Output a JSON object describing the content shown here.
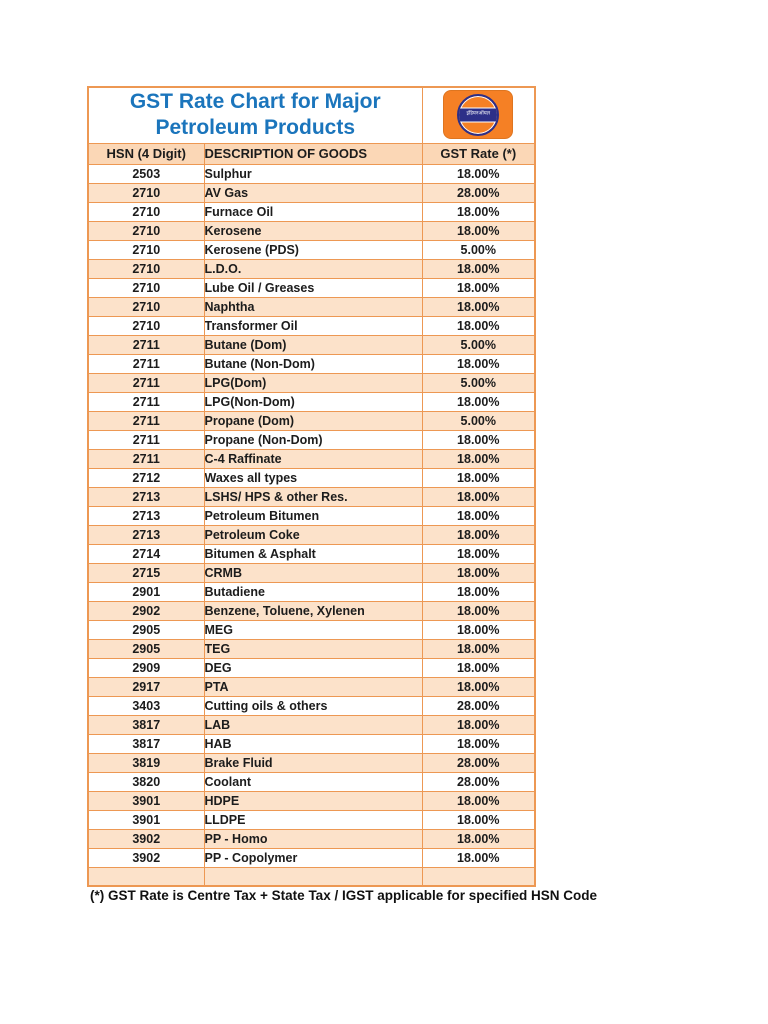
{
  "header": {
    "title": "GST Rate Chart for Major Petroleum Products",
    "title_lines": [
      "GST Rate Chart for Major",
      "Petroleum Products"
    ],
    "title_color": "#1B75BC",
    "logo": {
      "name": "indian-oil-logo",
      "band_text": "इंडियनऑयल",
      "orange": "#F58025",
      "navy": "#2D2F88"
    }
  },
  "table": {
    "columns": [
      "HSN (4 Digit)",
      "DESCRIPTION OF GOODS",
      "GST Rate (*)"
    ],
    "colors": {
      "border": "#ED9853",
      "header_bg": "#FBD7B6",
      "row_white": "#FFFFFF",
      "row_peach": "#FCE2CA"
    },
    "rows": [
      {
        "hsn": "2503",
        "description": "Sulphur",
        "rate": "18.00%"
      },
      {
        "hsn": "2710",
        "description": "AV Gas",
        "rate": "28.00%"
      },
      {
        "hsn": "2710",
        "description": "Furnace Oil",
        "rate": "18.00%"
      },
      {
        "hsn": "2710",
        "description": "Kerosene",
        "rate": "18.00%"
      },
      {
        "hsn": "2710",
        "description": "Kerosene (PDS)",
        "rate": "5.00%"
      },
      {
        "hsn": "2710",
        "description": "L.D.O.",
        "rate": "18.00%"
      },
      {
        "hsn": "2710",
        "description": "Lube Oil / Greases",
        "rate": "18.00%"
      },
      {
        "hsn": "2710",
        "description": "Naphtha",
        "rate": "18.00%"
      },
      {
        "hsn": "2710",
        "description": "Transformer Oil",
        "rate": "18.00%"
      },
      {
        "hsn": "2711",
        "description": "Butane (Dom)",
        "rate": "5.00%"
      },
      {
        "hsn": "2711",
        "description": "Butane (Non-Dom)",
        "rate": "18.00%"
      },
      {
        "hsn": "2711",
        "description": "LPG(Dom)",
        "rate": "5.00%"
      },
      {
        "hsn": "2711",
        "description": "LPG(Non-Dom)",
        "rate": "18.00%"
      },
      {
        "hsn": "2711",
        "description": "Propane (Dom)",
        "rate": "5.00%"
      },
      {
        "hsn": "2711",
        "description": "Propane (Non-Dom)",
        "rate": "18.00%"
      },
      {
        "hsn": "2711",
        "description": "C-4 Raffinate",
        "rate": "18.00%"
      },
      {
        "hsn": "2712",
        "description": "Waxes all types",
        "rate": "18.00%"
      },
      {
        "hsn": "2713",
        "description": "LSHS/ HPS & other Res.",
        "rate": "18.00%"
      },
      {
        "hsn": "2713",
        "description": "Petroleum Bitumen",
        "rate": "18.00%"
      },
      {
        "hsn": "2713",
        "description": "Petroleum Coke",
        "rate": "18.00%"
      },
      {
        "hsn": "2714",
        "description": "Bitumen & Asphalt",
        "rate": "18.00%"
      },
      {
        "hsn": "2715",
        "description": "CRMB",
        "rate": "18.00%"
      },
      {
        "hsn": "2901",
        "description": "Butadiene",
        "rate": "18.00%"
      },
      {
        "hsn": "2902",
        "description": "Benzene, Toluene, Xylenen",
        "rate": "18.00%"
      },
      {
        "hsn": "2905",
        "description": "MEG",
        "rate": "18.00%"
      },
      {
        "hsn": "2905",
        "description": "TEG",
        "rate": "18.00%"
      },
      {
        "hsn": "2909",
        "description": "DEG",
        "rate": "18.00%"
      },
      {
        "hsn": "2917",
        "description": "PTA",
        "rate": "18.00%"
      },
      {
        "hsn": "3403",
        "description": "Cutting oils & others",
        "rate": "28.00%"
      },
      {
        "hsn": "3817",
        "description": "LAB",
        "rate": "18.00%"
      },
      {
        "hsn": "3817",
        "description": "HAB",
        "rate": "18.00%"
      },
      {
        "hsn": "3819",
        "description": "Brake Fluid",
        "rate": "28.00%"
      },
      {
        "hsn": "3820",
        "description": "Coolant",
        "rate": "28.00%"
      },
      {
        "hsn": "3901",
        "description": "HDPE",
        "rate": "18.00%"
      },
      {
        "hsn": "3901",
        "description": "LLDPE",
        "rate": "18.00%"
      },
      {
        "hsn": "3902",
        "description": "PP - Homo",
        "rate": "18.00%"
      },
      {
        "hsn": "3902",
        "description": "PP - Copolymer",
        "rate": "18.00%"
      },
      {
        "hsn": "",
        "description": "",
        "rate": ""
      }
    ]
  },
  "footnote": "(*) GST Rate is Centre Tax + State Tax / IGST applicable for specified HSN Code"
}
